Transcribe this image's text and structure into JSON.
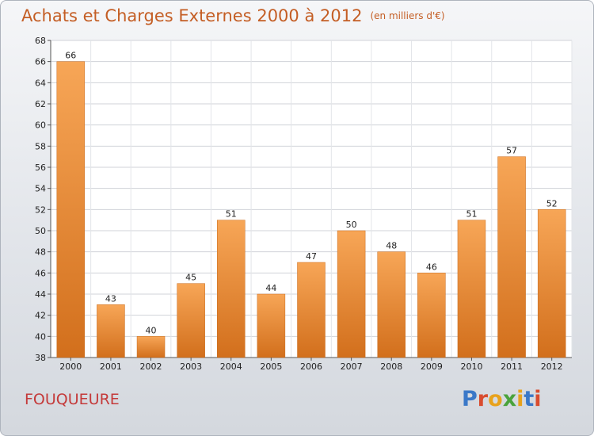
{
  "header": {
    "title": "Achats et Charges Externes 2000 à 2012",
    "subtitle": "(en milliers d'€)"
  },
  "footer": {
    "commune": "FOUQUEURE",
    "logo": [
      "P",
      "r",
      "o",
      "x",
      "i",
      "t",
      "i"
    ]
  },
  "colors": {
    "bar_light": "#f7a657",
    "bar_dark": "#d26f1c",
    "title": "#c45e25",
    "commune": "#c43a3a",
    "logo": [
      "#3a78c8",
      "#d94c2f",
      "#e8a21c",
      "#4aa33c",
      "#e8a21c",
      "#3a78c8",
      "#d94c2f"
    ]
  },
  "chart_data": {
    "type": "bar",
    "title": "Achats et Charges Externes 2000 à 2012",
    "subtitle": "(en milliers d'€)",
    "categories": [
      "2000",
      "2001",
      "2002",
      "2003",
      "2004",
      "2005",
      "2006",
      "2007",
      "2008",
      "2009",
      "2010",
      "2011",
      "2012"
    ],
    "values": [
      66,
      43,
      40,
      45,
      51,
      44,
      47,
      50,
      48,
      46,
      51,
      57,
      52
    ],
    "ylim": [
      38,
      68
    ],
    "yticks": [
      38,
      40,
      42,
      44,
      46,
      48,
      50,
      52,
      54,
      56,
      58,
      60,
      62,
      64,
      66,
      68
    ],
    "grid": true,
    "xlabel": "",
    "ylabel": ""
  }
}
